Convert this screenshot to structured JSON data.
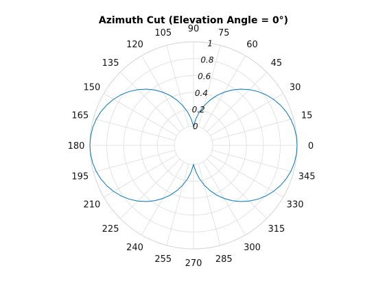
{
  "chart_data": {
    "type": "line",
    "projection": "polar",
    "title": "Azimuth Cut (Elevation Angle = 0°)",
    "theta_direction": "counterclockwise",
    "theta_zero_location": "right",
    "theta_ticks": [
      0,
      15,
      30,
      45,
      60,
      75,
      90,
      105,
      120,
      135,
      150,
      165,
      180,
      195,
      210,
      225,
      240,
      255,
      270,
      285,
      300,
      315,
      330,
      345
    ],
    "r_ticks": [
      "0",
      "0.2",
      "0.4",
      "0.6",
      "0.8",
      "1"
    ],
    "rlim": [
      0,
      1
    ],
    "grid": true,
    "series": [
      {
        "color": "#0072bd",
        "theta": [
          0,
          5,
          10,
          15,
          20,
          25,
          30,
          35,
          40,
          45,
          50,
          55,
          60,
          65,
          70,
          75,
          80,
          85,
          90,
          95,
          100,
          105,
          110,
          115,
          120,
          125,
          130,
          135,
          140,
          145,
          150,
          155,
          160,
          165,
          170,
          175,
          180,
          185,
          190,
          195,
          200,
          205,
          210,
          215,
          220,
          225,
          230,
          235,
          240,
          245,
          250,
          255,
          260,
          265,
          270,
          275,
          280,
          285,
          290,
          295,
          300,
          305,
          310,
          315,
          320,
          325,
          330,
          335,
          340,
          345,
          350,
          355,
          360
        ],
        "r": [
          1.0,
          0.996,
          0.985,
          0.966,
          0.94,
          0.906,
          0.866,
          0.819,
          0.766,
          0.707,
          0.643,
          0.574,
          0.5,
          0.423,
          0.342,
          0.259,
          0.174,
          0.087,
          0.0,
          0.087,
          0.174,
          0.259,
          0.342,
          0.423,
          0.5,
          0.574,
          0.643,
          0.707,
          0.766,
          0.819,
          0.866,
          0.906,
          0.94,
          0.966,
          0.985,
          0.996,
          1.0,
          0.996,
          0.985,
          0.966,
          0.94,
          0.906,
          0.866,
          0.819,
          0.766,
          0.707,
          0.643,
          0.574,
          0.5,
          0.423,
          0.342,
          0.259,
          0.174,
          0.087,
          0.0,
          0.087,
          0.174,
          0.259,
          0.342,
          0.423,
          0.5,
          0.574,
          0.643,
          0.707,
          0.766,
          0.819,
          0.866,
          0.906,
          0.94,
          0.966,
          0.985,
          0.996,
          1.0
        ]
      }
    ]
  }
}
